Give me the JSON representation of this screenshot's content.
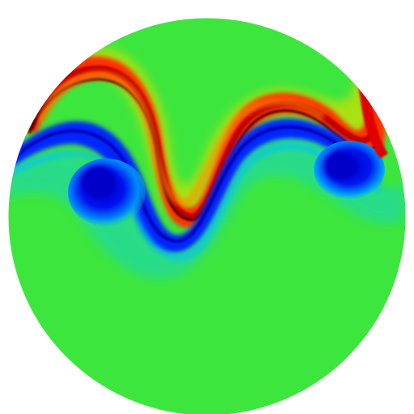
{
  "scene": {
    "kind": "simulation-field-render",
    "shape": "sphere-disc",
    "background": "#ffffff",
    "colormap": {
      "name": "jet",
      "stops": [
        "#00008f",
        "#0000ff",
        "#00b4ff",
        "#22e0a8",
        "#3de63d",
        "#c8e400",
        "#ffb000",
        "#ff3000",
        "#b00000",
        "#500000"
      ]
    },
    "palette": {
      "base": "#3de63d",
      "teal": "#22d9a0",
      "cyan": "#00c6ff",
      "blue": "#0022ff",
      "deep_blue": "#0000c0",
      "yellow": "#d8e000",
      "orange": "#ff9a00",
      "red": "#ff2200",
      "dark_red": "#c00000",
      "black_red": "#300000"
    },
    "features": [
      {
        "name": "upper-shear-band",
        "role": "positive-anomaly",
        "color": "red"
      },
      {
        "name": "lower-shear-band",
        "role": "negative-anomaly",
        "color": "blue"
      },
      {
        "name": "left-vortex",
        "role": "negative-anomaly",
        "color": "deep_blue"
      },
      {
        "name": "right-vortex",
        "role": "negative-anomaly",
        "color": "deep_blue"
      },
      {
        "name": "wave-crest",
        "role": "positive-anomaly",
        "color": "red"
      }
    ]
  }
}
